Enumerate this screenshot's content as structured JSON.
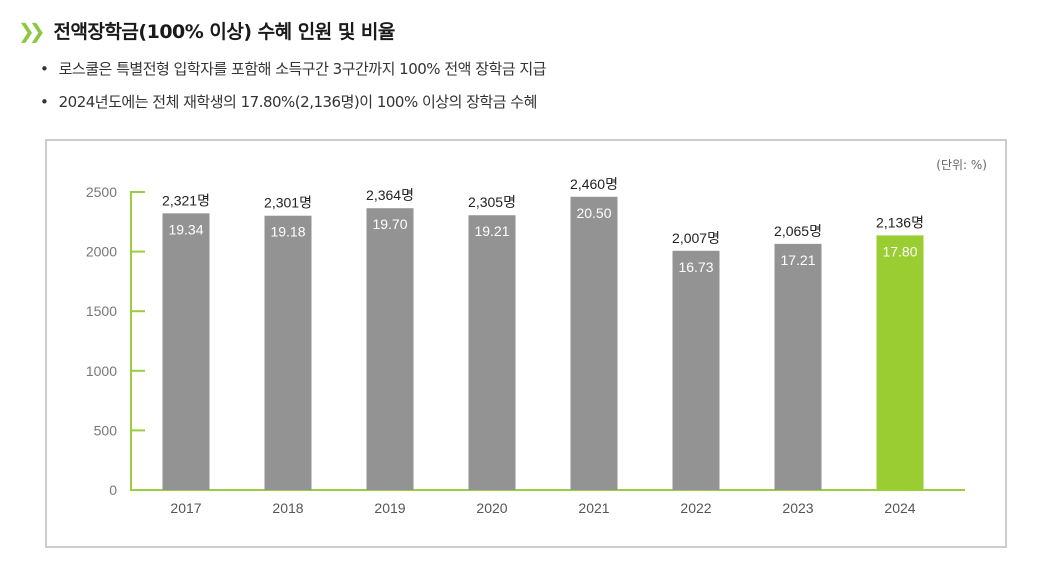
{
  "title": "전액장학금(100% 이상) 수혜 인원 및 비율",
  "bullets": [
    "로스쿨은 특별전형 입학자를 포함해 소득구간 3구간까지 100% 전액 장학금 지급",
    "2024년도에는 전체 재학생의 17.80%(2,136명)이 100% 이상의 장학금 수혜"
  ],
  "colors": {
    "bar": "#939393",
    "highlight": "#9acd32",
    "axis": "#9acd3f",
    "accent": "#8dc63f"
  },
  "chart_data": {
    "type": "bar",
    "unit_note": "(단위: %)",
    "categories": [
      "2017",
      "2018",
      "2019",
      "2020",
      "2021",
      "2022",
      "2023",
      "2024"
    ],
    "values": [
      2321,
      2301,
      2364,
      2305,
      2460,
      2007,
      2065,
      2136
    ],
    "count_labels": [
      "2,321명",
      "2,301명",
      "2,364명",
      "2,305명",
      "2,460명",
      "2,007명",
      "2,065명",
      "2,136명"
    ],
    "rate_labels": [
      "19.34",
      "19.18",
      "19.70",
      "19.21",
      "20.50",
      "16.73",
      "17.21",
      "17.80"
    ],
    "highlight_category": "2024",
    "ylim": [
      0,
      2500
    ],
    "yticks": [
      0,
      500,
      1000,
      1500,
      2000,
      2500
    ],
    "grid": false
  }
}
